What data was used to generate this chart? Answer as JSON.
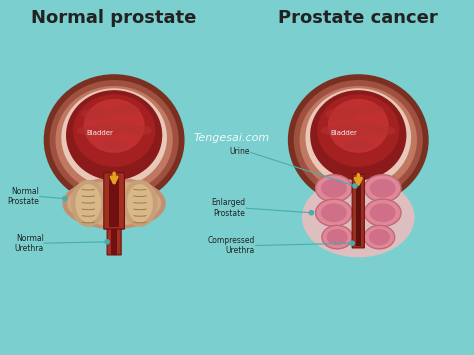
{
  "bg_color": "#7BCFCF",
  "title_left": "Normal prostate",
  "title_right": "Prostate cancer",
  "title_fontsize": 13,
  "watermark": "Tengesai.com",
  "bladder_outer_color": "#9B4E38",
  "bladder_wall_color": "#C07860",
  "bladder_inner_color": "#8B1A1A",
  "bladder_cavity_color": "#A52020",
  "bladder_center_color": "#C03030",
  "prostate_normal_outer": "#C8A080",
  "prostate_normal_inner": "#D4B090",
  "prostate_cancer_outer": "#E8A0A0",
  "prostate_cancer_inner": "#D06878",
  "prostate_cancer_bg": "#DEB0B0",
  "urethra_red": "#B03020",
  "urethra_channel": "#7A1010",
  "arrow_color": "#E8A020",
  "white": "#FFFFFF",
  "text_dark": "#222222",
  "label_line_color": "#4AACAC",
  "label_text_color": "#222222"
}
